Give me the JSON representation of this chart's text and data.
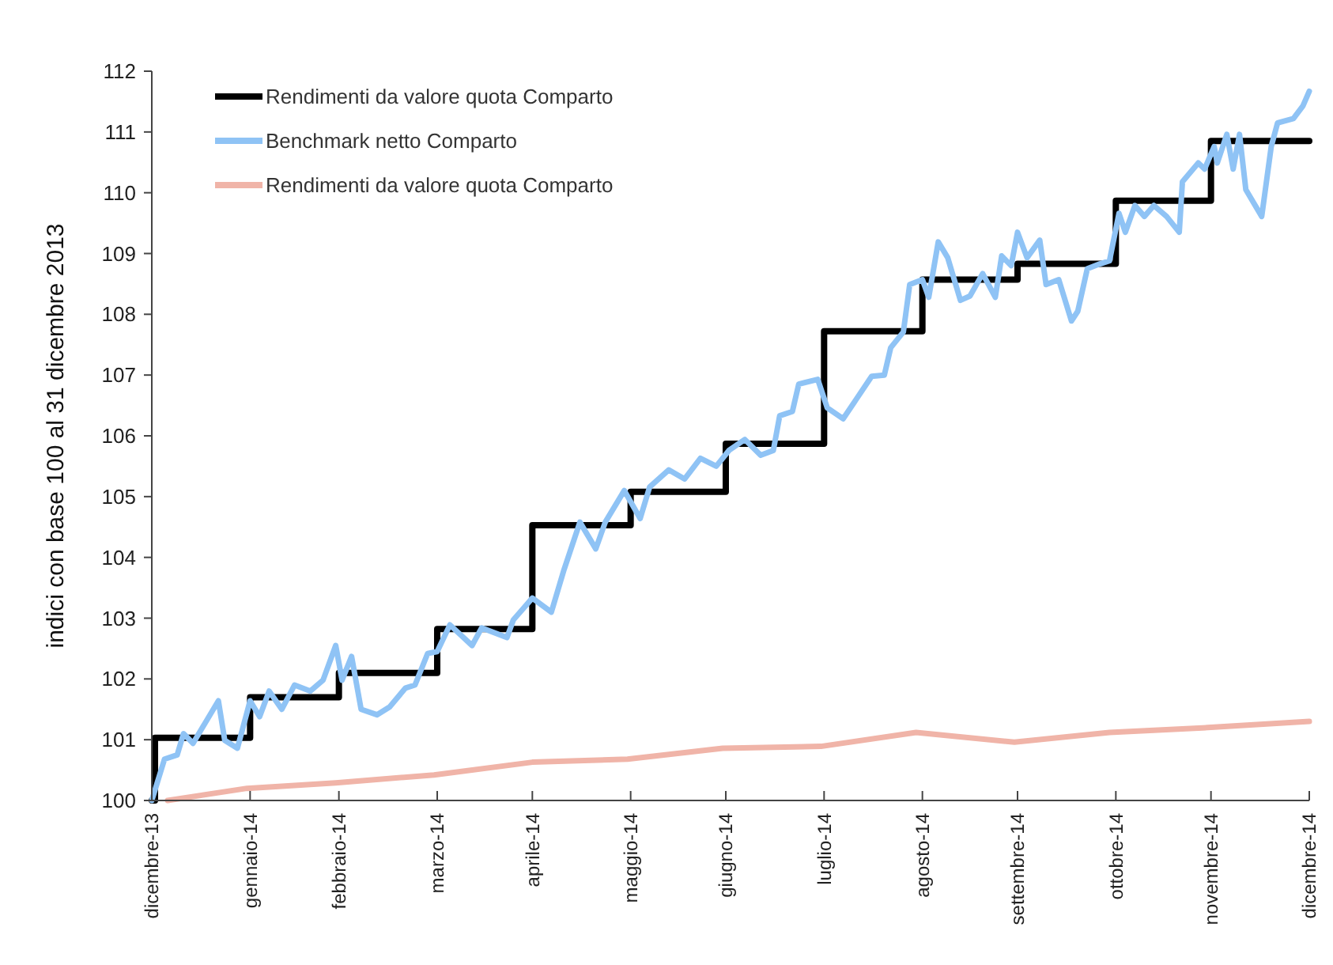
{
  "chart_data": {
    "type": "line",
    "ylabel": "indici con base 100 al 31 dicembre 2013",
    "ylim": [
      100,
      112
    ],
    "yticks": [
      100,
      101,
      102,
      103,
      104,
      105,
      106,
      107,
      108,
      109,
      110,
      111,
      112
    ],
    "xlim": [
      "2013-12-31",
      "2014-12-31"
    ],
    "xticks": [
      {
        "value": "2013-12-31",
        "label": "dicembre-13"
      },
      {
        "value": "2014-01-31",
        "label": "gennaio-14"
      },
      {
        "value": "2014-02-28",
        "label": "febbraio-14"
      },
      {
        "value": "2014-03-31",
        "label": "marzo-14"
      },
      {
        "value": "2014-04-30",
        "label": "aprile-14"
      },
      {
        "value": "2014-05-31",
        "label": "maggio-14"
      },
      {
        "value": "2014-06-30",
        "label": "giugno-14"
      },
      {
        "value": "2014-07-31",
        "label": "luglio-14"
      },
      {
        "value": "2014-08-31",
        "label": "agosto-14"
      },
      {
        "value": "2014-09-30",
        "label": "settembre-14"
      },
      {
        "value": "2014-10-31",
        "label": "ottobre-14"
      },
      {
        "value": "2014-11-30",
        "label": "novembre-14"
      },
      {
        "value": "2014-12-31",
        "label": "dicembre-14"
      }
    ],
    "grid": false,
    "legend": "top left",
    "line_style": "solid",
    "marker": "none",
    "series": [
      {
        "name": "Rendimenti da valore quota Comparto",
        "type": "step",
        "color": "#000000",
        "x": [
          "2013-12-31",
          "2014-01-01",
          "2014-01-31",
          "2014-02-28",
          "2014-03-31",
          "2014-04-30",
          "2014-05-31",
          "2014-06-30",
          "2014-07-31",
          "2014-08-31",
          "2014-09-30",
          "2014-10-31",
          "2014-11-30",
          "2014-12-31"
        ],
        "values": [
          100,
          101.03,
          101.7,
          102.1,
          102.82,
          104.53,
          105.08,
          105.87,
          107.72,
          108.57,
          108.83,
          109.87,
          110.85,
          110.85
        ]
      },
      {
        "name": "Benchmark netto Comparto",
        "color": "#8fc3f5",
        "x": [
          "2013-12-31",
          "2014-01-04",
          "2014-01-08",
          "2014-01-10",
          "2014-01-13",
          "2014-01-21",
          "2014-01-23",
          "2014-01-27",
          "2014-01-31",
          "2014-02-03",
          "2014-02-06",
          "2014-02-10",
          "2014-02-14",
          "2014-02-19",
          "2014-02-23",
          "2014-02-27",
          "2014-03-01",
          "2014-03-04",
          "2014-03-07",
          "2014-03-12",
          "2014-03-16",
          "2014-03-21",
          "2014-03-24",
          "2014-03-28",
          "2014-03-31",
          "2014-04-04",
          "2014-04-11",
          "2014-04-14",
          "2014-04-22",
          "2014-04-24",
          "2014-04-30",
          "2014-05-06",
          "2014-05-10",
          "2014-05-15",
          "2014-05-20",
          "2014-05-23",
          "2014-05-29",
          "2014-06-03",
          "2014-06-06",
          "2014-06-12",
          "2014-06-17",
          "2014-06-22",
          "2014-06-27",
          "2014-07-01",
          "2014-07-06",
          "2014-07-11",
          "2014-07-15",
          "2014-07-17",
          "2014-07-21",
          "2014-07-23",
          "2014-07-29",
          "2014-08-01",
          "2014-08-06",
          "2014-08-10",
          "2014-08-15",
          "2014-08-19",
          "2014-08-21",
          "2014-08-25",
          "2014-08-27",
          "2014-08-31",
          "2014-09-02",
          "2014-09-05",
          "2014-09-08",
          "2014-09-12",
          "2014-09-15",
          "2014-09-19",
          "2014-09-23",
          "2014-09-25",
          "2014-09-28",
          "2014-09-30",
          "2014-10-03",
          "2014-10-07",
          "2014-10-09",
          "2014-10-13",
          "2014-10-17",
          "2014-10-19",
          "2014-10-22",
          "2014-10-26",
          "2014-10-29",
          "2014-11-01",
          "2014-11-03",
          "2014-11-06",
          "2014-11-09",
          "2014-11-12",
          "2014-11-16",
          "2014-11-20",
          "2014-11-21",
          "2014-11-26",
          "2014-11-28",
          "2014-12-01",
          "2014-12-02",
          "2014-12-05",
          "2014-12-07",
          "2014-12-09",
          "2014-12-11",
          "2014-12-16",
          "2014-12-19",
          "2014-12-21",
          "2014-12-26",
          "2014-12-29",
          "2014-12-31"
        ],
        "values": [
          100,
          100.68,
          100.75,
          101.1,
          100.94,
          101.64,
          100.99,
          100.86,
          101.64,
          101.38,
          101.8,
          101.5,
          101.9,
          101.8,
          101.98,
          102.55,
          101.98,
          102.37,
          101.5,
          101.41,
          101.54,
          101.85,
          101.9,
          102.42,
          102.45,
          102.89,
          102.55,
          102.84,
          102.68,
          102.97,
          103.33,
          103.1,
          103.8,
          104.58,
          104.14,
          104.58,
          105.1,
          104.64,
          105.16,
          105.44,
          105.29,
          105.63,
          105.5,
          105.76,
          105.94,
          105.68,
          105.76,
          106.33,
          106.4,
          106.85,
          106.93,
          106.46,
          106.28,
          106.59,
          106.98,
          107,
          107.45,
          107.71,
          108.49,
          108.57,
          108.28,
          109.19,
          108.93,
          108.23,
          108.3,
          108.67,
          108.28,
          108.96,
          108.8,
          109.35,
          108.93,
          109.22,
          108.49,
          108.57,
          107.89,
          108.05,
          108.75,
          108.83,
          108.88,
          109.66,
          109.35,
          109.79,
          109.61,
          109.79,
          109.61,
          109.35,
          110.18,
          110.49,
          110.39,
          110.76,
          110.49,
          110.96,
          110.39,
          110.96,
          110.05,
          109.61,
          110.76,
          111.15,
          111.22,
          111.43,
          111.67
        ]
      },
      {
        "name": "Rendimenti da valore quota Comparto",
        "color": "#f0b4a8",
        "x": [
          "2014-01-05",
          "2014-01-30",
          "2014-02-27",
          "2014-03-30",
          "2014-04-30",
          "2014-05-30",
          "2014-06-29",
          "2014-07-30",
          "2014-08-29",
          "2014-09-29",
          "2014-10-29",
          "2014-11-29",
          "2014-12-31"
        ],
        "values": [
          100,
          100.2,
          100.29,
          100.42,
          100.63,
          100.68,
          100.86,
          100.89,
          101.12,
          100.96,
          101.12,
          101.2,
          101.3
        ]
      }
    ]
  }
}
